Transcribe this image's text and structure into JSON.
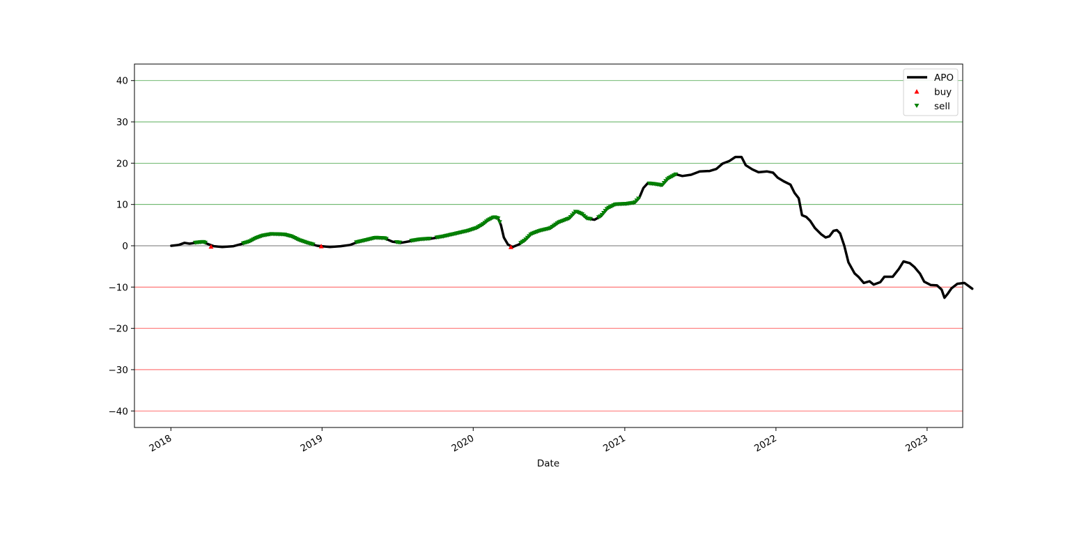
{
  "chart_data": {
    "type": "line",
    "title": "",
    "xlabel": "Date",
    "ylabel": "",
    "x_ticks": [
      "2018",
      "2019",
      "2020",
      "2021",
      "2022",
      "2023"
    ],
    "y_ticks": [
      40,
      30,
      20,
      10,
      0,
      -10,
      -20,
      -30,
      -40
    ],
    "ylim": [
      -44,
      44
    ],
    "xlim": [
      "2017-10-05",
      "2023-03-28"
    ],
    "grid": "horizontal lines at tick values; green for positive, black at 0, red for negative",
    "colors": {
      "apo": "#000000",
      "buy": "#ff0000",
      "sell": "#008000",
      "grid_positive": "#008000",
      "grid_zero": "#000000",
      "grid_negative": "#ff0000"
    },
    "legend": {
      "placement": "upper right",
      "entries": [
        "APO",
        "buy",
        "sell"
      ]
    },
    "series": [
      {
        "name": "APO",
        "style": "line",
        "points": [
          [
            "2018-01-02",
            0.0
          ],
          [
            "2018-01-20",
            0.2
          ],
          [
            "2018-02-03",
            0.7
          ],
          [
            "2018-02-15",
            0.5
          ],
          [
            "2018-03-01",
            0.7
          ],
          [
            "2018-03-20",
            0.9
          ],
          [
            "2018-04-01",
            0.4
          ],
          [
            "2018-04-15",
            -0.1
          ],
          [
            "2018-05-05",
            -0.3
          ],
          [
            "2018-06-01",
            -0.1
          ],
          [
            "2018-06-20",
            0.4
          ],
          [
            "2018-07-10",
            1.0
          ],
          [
            "2018-07-25",
            1.8
          ],
          [
            "2018-08-10",
            2.4
          ],
          [
            "2018-09-01",
            2.8
          ],
          [
            "2018-10-01",
            2.7
          ],
          [
            "2018-10-20",
            2.2
          ],
          [
            "2018-11-05",
            1.4
          ],
          [
            "2018-11-25",
            0.7
          ],
          [
            "2018-12-20",
            0.0
          ],
          [
            "2019-01-20",
            -0.3
          ],
          [
            "2019-02-15",
            -0.1
          ],
          [
            "2019-03-10",
            0.2
          ],
          [
            "2019-03-25",
            0.8
          ],
          [
            "2019-04-20",
            1.4
          ],
          [
            "2019-05-10",
            1.9
          ],
          [
            "2019-06-01",
            1.8
          ],
          [
            "2019-06-20",
            1.0
          ],
          [
            "2019-07-10",
            0.7
          ],
          [
            "2019-08-01",
            1.1
          ],
          [
            "2019-08-25",
            1.5
          ],
          [
            "2019-09-20",
            1.7
          ],
          [
            "2019-10-20",
            2.2
          ],
          [
            "2019-11-20",
            2.9
          ],
          [
            "2019-12-20",
            3.6
          ],
          [
            "2020-01-10",
            4.3
          ],
          [
            "2020-01-25",
            5.2
          ],
          [
            "2020-02-05",
            6.1
          ],
          [
            "2020-02-20",
            6.9
          ],
          [
            "2020-03-01",
            6.6
          ],
          [
            "2020-03-08",
            5.0
          ],
          [
            "2020-03-15",
            2.0
          ],
          [
            "2020-03-25",
            0.3
          ],
          [
            "2020-04-05",
            -0.3
          ],
          [
            "2020-04-20",
            0.3
          ],
          [
            "2020-05-05",
            1.3
          ],
          [
            "2020-05-20",
            2.8
          ],
          [
            "2020-06-10",
            3.6
          ],
          [
            "2020-07-05",
            4.2
          ],
          [
            "2020-07-25",
            5.6
          ],
          [
            "2020-08-20",
            6.6
          ],
          [
            "2020-09-05",
            8.3
          ],
          [
            "2020-09-20",
            7.6
          ],
          [
            "2020-10-01",
            6.6
          ],
          [
            "2020-10-20",
            6.3
          ],
          [
            "2020-11-05",
            7.2
          ],
          [
            "2020-11-20",
            9.0
          ],
          [
            "2020-12-10",
            10.0
          ],
          [
            "2021-01-05",
            10.1
          ],
          [
            "2021-01-25",
            10.4
          ],
          [
            "2021-02-05",
            11.6
          ],
          [
            "2021-02-15",
            14.0
          ],
          [
            "2021-02-25",
            15.1
          ],
          [
            "2021-03-15",
            14.9
          ],
          [
            "2021-04-01",
            14.6
          ],
          [
            "2021-04-15",
            16.2
          ],
          [
            "2021-05-05",
            17.3
          ],
          [
            "2021-05-20",
            16.9
          ],
          [
            "2021-06-10",
            17.2
          ],
          [
            "2021-07-01",
            18.0
          ],
          [
            "2021-07-25",
            18.1
          ],
          [
            "2021-08-10",
            18.6
          ],
          [
            "2021-08-25",
            19.9
          ],
          [
            "2021-09-10",
            20.5
          ],
          [
            "2021-09-25",
            21.5
          ],
          [
            "2021-10-10",
            21.5
          ],
          [
            "2021-10-20",
            19.5
          ],
          [
            "2021-11-05",
            18.5
          ],
          [
            "2021-11-20",
            17.8
          ],
          [
            "2021-12-10",
            18.0
          ],
          [
            "2021-12-25",
            17.7
          ],
          [
            "2022-01-05",
            16.5
          ],
          [
            "2022-01-20",
            15.6
          ],
          [
            "2022-02-05",
            14.8
          ],
          [
            "2022-02-15",
            12.8
          ],
          [
            "2022-02-25",
            11.5
          ],
          [
            "2022-03-05",
            7.4
          ],
          [
            "2022-03-15",
            7.0
          ],
          [
            "2022-03-25",
            6.0
          ],
          [
            "2022-04-05",
            4.3
          ],
          [
            "2022-04-20",
            2.8
          ],
          [
            "2022-05-01",
            2.0
          ],
          [
            "2022-05-10",
            2.3
          ],
          [
            "2022-05-20",
            3.6
          ],
          [
            "2022-05-28",
            3.8
          ],
          [
            "2022-06-05",
            3.0
          ],
          [
            "2022-06-15",
            0.0
          ],
          [
            "2022-06-25",
            -4.0
          ],
          [
            "2022-07-10",
            -6.7
          ],
          [
            "2022-07-20",
            -7.6
          ],
          [
            "2022-08-01",
            -9.0
          ],
          [
            "2022-08-15",
            -8.6
          ],
          [
            "2022-08-25",
            -9.4
          ],
          [
            "2022-09-10",
            -8.8
          ],
          [
            "2022-09-20",
            -7.5
          ],
          [
            "2022-10-10",
            -7.5
          ],
          [
            "2022-10-25",
            -5.6
          ],
          [
            "2022-11-05",
            -3.8
          ],
          [
            "2022-11-20",
            -4.2
          ],
          [
            "2022-12-01",
            -5.1
          ],
          [
            "2022-12-15",
            -6.8
          ],
          [
            "2022-12-25",
            -8.7
          ],
          [
            "2023-01-10",
            -9.5
          ],
          [
            "2023-01-25",
            -9.6
          ],
          [
            "2023-02-05",
            -10.6
          ],
          [
            "2023-02-12",
            -12.6
          ],
          [
            "2023-02-20",
            -11.6
          ],
          [
            "2023-03-01",
            -10.3
          ],
          [
            "2023-03-15",
            -9.2
          ],
          [
            "2023-04-01",
            -9.0
          ],
          [
            "2023-04-20",
            -10.4
          ]
        ]
      },
      {
        "name": "buy",
        "style": "marker",
        "marker": "triangle-up",
        "points": [
          [
            "2018-04-08",
            -0.2
          ],
          [
            "2018-12-30",
            -0.1
          ],
          [
            "2020-04-01",
            -0.3
          ]
        ]
      },
      {
        "name": "sell",
        "style": "marker",
        "marker": "triangle-down",
        "segments": [
          [
            "2018-03-01",
            "2018-03-28"
          ],
          [
            "2018-06-25",
            "2018-12-10"
          ],
          [
            "2019-03-25",
            "2019-06-05"
          ],
          [
            "2019-06-30",
            "2019-07-10"
          ],
          [
            "2019-08-05",
            "2019-09-20"
          ],
          [
            "2019-10-05",
            "2020-03-08"
          ],
          [
            "2020-04-25",
            "2020-10-10"
          ],
          [
            "2020-10-30",
            "2021-02-05"
          ],
          [
            "2021-03-01",
            "2021-05-05"
          ]
        ]
      }
    ]
  }
}
